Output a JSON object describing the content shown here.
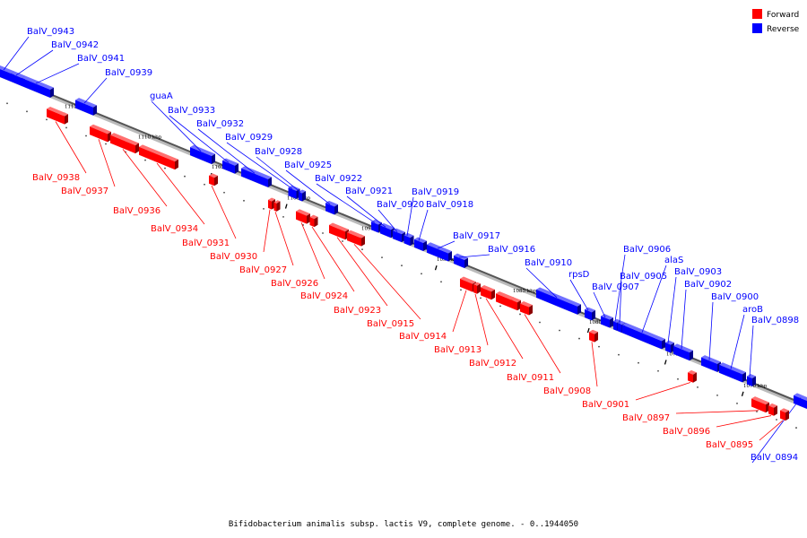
{
  "caption": "Bifidobacterium animalis subsp. lactis V9, complete genome. - 0..1944050",
  "colors": {
    "forward": "#ff0000",
    "reverse": "#0000ff",
    "backbone": "#555555"
  },
  "legend": [
    {
      "label": "Forward",
      "strand": "forward"
    },
    {
      "label": "Reverse",
      "strand": "reverse"
    }
  ],
  "scale_ticks": [
    "1115 kbp",
    "1110 kbp",
    "1105 kbp",
    "1100 kbp",
    "1095 kbp",
    "1090 kbp",
    "1085 kbp",
    "1080 kbp",
    "1075 kbp",
    "1070 kbp"
  ],
  "reverse_labels": [
    "BalV_0943",
    "BalV_0942",
    "BalV_0941",
    "BalV_0939",
    "guaA",
    "BalV_0933",
    "BalV_0932",
    "BalV_0929",
    "BalV_0928",
    "BalV_0925",
    "BalV_0922",
    "BalV_0921",
    "BalV_0920",
    "BalV_0919",
    "BalV_0918",
    "BalV_0917",
    "BalV_0916",
    "BalV_0910",
    "rpsD",
    "BalV_0907",
    "BalV_0906",
    "BalV_0905",
    "alaS",
    "BalV_0903",
    "BalV_0902",
    "BalV_0900",
    "aroB",
    "BalV_0898",
    "BalV_0894"
  ],
  "forward_labels": [
    "BalV_0938",
    "BalV_0937",
    "BalV_0936",
    "BalV_0934",
    "BalV_0931",
    "BalV_0930",
    "BalV_0927",
    "BalV_0926",
    "BalV_0924",
    "BalV_0923",
    "BalV_0915",
    "BalV_0914",
    "BalV_0913",
    "BalV_0912",
    "BalV_0911",
    "BalV_0908",
    "BalV_0901",
    "BalV_0897",
    "BalV_0896",
    "BalV_0895"
  ]
}
